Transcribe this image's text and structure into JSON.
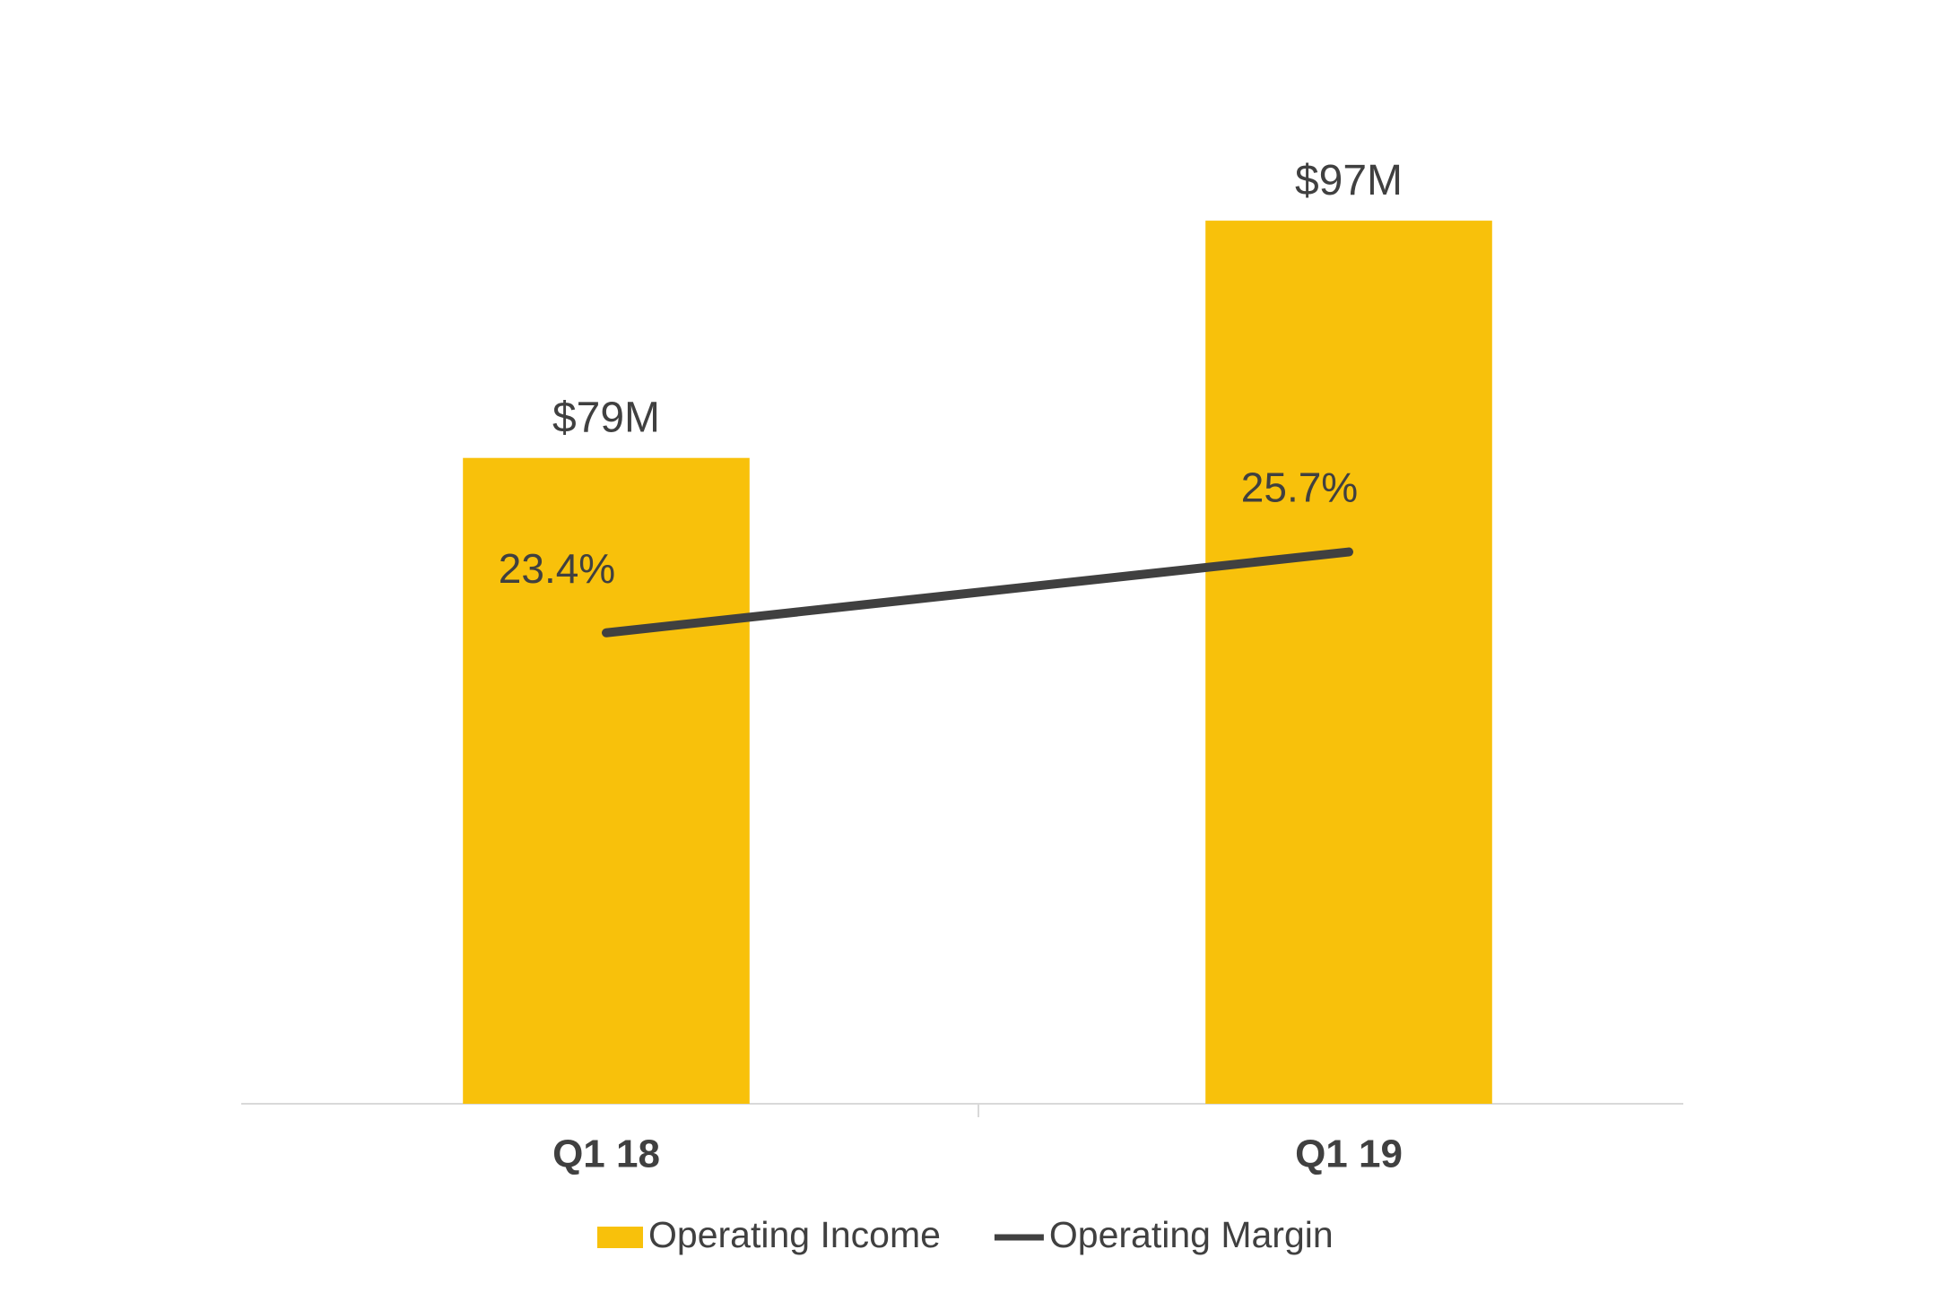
{
  "chart_data": {
    "type": "bar-line",
    "categories": [
      "Q1 18",
      "Q1 19"
    ],
    "series": [
      {
        "name": "Operating Income",
        "type": "bar",
        "color": "#f8c10b",
        "values": [
          79,
          97
        ],
        "value_labels": [
          "$79M",
          "$97M"
        ]
      },
      {
        "name": "Operating Margin",
        "type": "line",
        "axis": "y2",
        "color": "#404040",
        "values": [
          23.4,
          25.7
        ],
        "value_labels": [
          "23.4%",
          "25.7%"
        ]
      }
    ],
    "ylim": [
      30,
      110
    ],
    "y2lim": [
      10,
      40
    ],
    "legend": "bottom"
  }
}
